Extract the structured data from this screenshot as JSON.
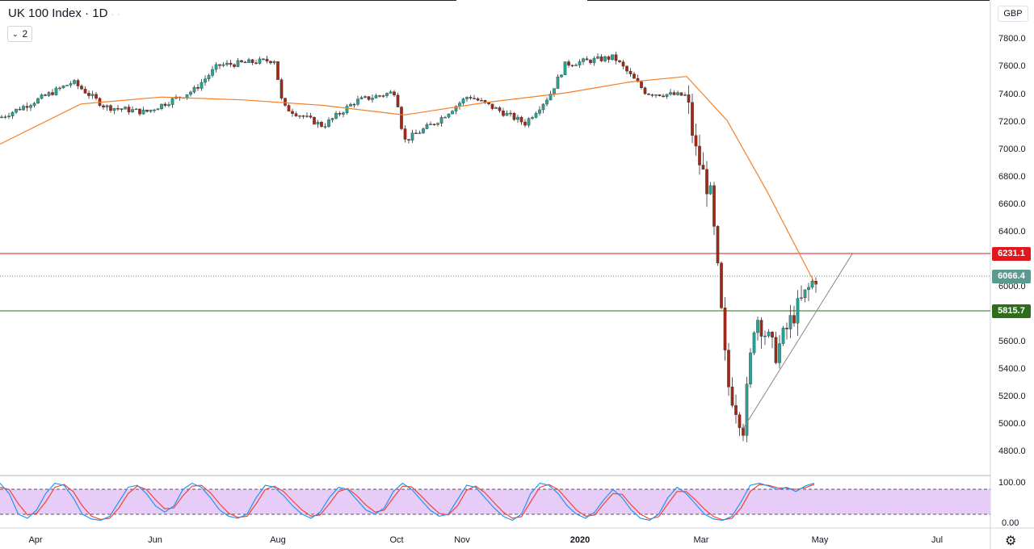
{
  "header": {
    "title": "UK 100 Index · 1D",
    "collapse_count": "2"
  },
  "price_scale": {
    "currency": "GBP",
    "ticks": [
      "7800.0",
      "7600.0",
      "7400.0",
      "7200.0",
      "7000.0",
      "6800.0",
      "6600.0",
      "6400.0",
      "6000.0",
      "5600.0",
      "5400.0",
      "5200.0",
      "5000.0",
      "4800.0"
    ],
    "levels": {
      "resistance": "6231.1",
      "last_price": "6066.4",
      "support": "5815.7"
    }
  },
  "oscillator_scale": {
    "ticks": [
      "100.00",
      "0.00"
    ]
  },
  "time_axis": {
    "labels": [
      "Apr",
      "Jun",
      "Aug",
      "Oct",
      "Nov",
      "2020",
      "Mar",
      "May",
      "Jul"
    ]
  },
  "icons": {
    "settings": "gear-icon",
    "collapse": "chevron-down-icon"
  },
  "colors": {
    "up": "#26a69a",
    "down": "#a52714",
    "ma": "#f57f29",
    "stoch_k": "#2196f3",
    "stoch_d": "#f44336",
    "stoch_band": "#e6ccf7",
    "resistance": "#e0181e",
    "support": "#2e6e1b"
  },
  "chart_data": {
    "type": "line",
    "price_axis": {
      "ylim": [
        4720,
        7900
      ]
    },
    "ma_curve": [
      [
        0,
        7028
      ],
      [
        100,
        7320
      ],
      [
        200,
        7370
      ],
      [
        300,
        7350
      ],
      [
        400,
        7310
      ],
      [
        500,
        7240
      ],
      [
        600,
        7330
      ],
      [
        700,
        7400
      ],
      [
        780,
        7480
      ],
      [
        850,
        7520
      ],
      [
        900,
        7200
      ],
      [
        950,
        6680
      ],
      [
        1010,
        6000
      ]
    ],
    "price_curve": [
      [
        0,
        7220
      ],
      [
        50,
        7360
      ],
      [
        90,
        7480
      ],
      [
        130,
        7300
      ],
      [
        180,
        7260
      ],
      [
        240,
        7420
      ],
      [
        270,
        7600
      ],
      [
        340,
        7640
      ],
      [
        350,
        7300
      ],
      [
        400,
        7160
      ],
      [
        440,
        7340
      ],
      [
        490,
        7410
      ],
      [
        500,
        7050
      ],
      [
        540,
        7190
      ],
      [
        580,
        7380
      ],
      [
        650,
        7180
      ],
      [
        680,
        7380
      ],
      [
        700,
        7610
      ],
      [
        760,
        7660
      ],
      [
        800,
        7400
      ],
      [
        850,
        7380
      ],
      [
        860,
        7000
      ],
      [
        880,
        6640
      ],
      [
        890,
        6000
      ],
      [
        900,
        5300
      ],
      [
        920,
        4970
      ],
      [
        935,
        5800
      ],
      [
        960,
        5500
      ],
      [
        980,
        5760
      ],
      [
        1010,
        6066
      ]
    ],
    "trendline": [
      [
        920,
        4960
      ],
      [
        1055,
        6230
      ]
    ],
    "stochastic": {
      "band": [
        20,
        80
      ],
      "k": [
        95,
        70,
        20,
        10,
        30,
        70,
        95,
        90,
        60,
        20,
        8,
        5,
        15,
        50,
        85,
        90,
        70,
        40,
        25,
        40,
        80,
        95,
        85,
        60,
        30,
        15,
        10,
        20,
        60,
        90,
        85,
        65,
        40,
        20,
        10,
        25,
        60,
        85,
        80,
        55,
        30,
        20,
        35,
        75,
        95,
        80,
        55,
        30,
        15,
        20,
        55,
        90,
        85,
        60,
        35,
        15,
        5,
        20,
        70,
        95,
        90,
        70,
        40,
        20,
        10,
        25,
        55,
        80,
        60,
        30,
        10,
        5,
        20,
        60,
        85,
        70,
        45,
        20,
        8,
        5,
        15,
        50,
        90,
        95,
        88,
        80,
        85,
        75,
        88,
        95
      ],
      "d": [
        85,
        80,
        45,
        18,
        22,
        50,
        85,
        92,
        75,
        40,
        15,
        7,
        10,
        35,
        70,
        88,
        80,
        55,
        33,
        35,
        65,
        88,
        90,
        72,
        45,
        22,
        12,
        15,
        45,
        80,
        88,
        75,
        52,
        30,
        15,
        18,
        45,
        75,
        82,
        65,
        42,
        25,
        30,
        60,
        88,
        86,
        65,
        42,
        22,
        18,
        40,
        78,
        88,
        72,
        48,
        25,
        10,
        14,
        50,
        85,
        92,
        80,
        55,
        30,
        15,
        18,
        45,
        70,
        68,
        42,
        20,
        8,
        14,
        45,
        75,
        75,
        55,
        32,
        14,
        6,
        10,
        35,
        75,
        92,
        90,
        84,
        83,
        80,
        84,
        92
      ]
    }
  }
}
